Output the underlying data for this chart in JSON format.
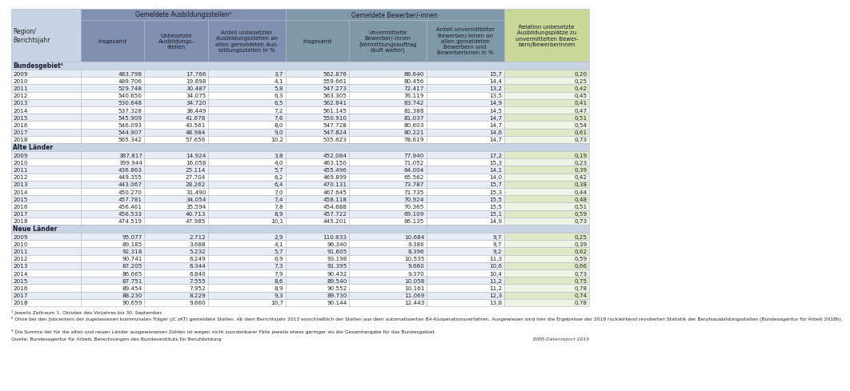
{
  "col_headers_line1_ausb": "Gemeldete Ausbildungsstellen²",
  "col_headers_line1_bew": "Gemeldete Bewerber/-innen",
  "col_headers_line2": [
    "Region/\nBerichtsjahr",
    "Insgesamt",
    "Unbesetzte\nAusbildungs-\nstellen",
    "Anteil unbesetzter\nAusbildungsstellen an\nallen gemeldeten Aus-\nbildungsstellen in %",
    "Insgesamt",
    "Unvermittelte\nBewerber/-innen\n(Vermittlungsauftrag\nläuft weiter)",
    "Anteil unvermittelter\nBewerber/-innen an\nallen gemeldeten\nBewerbern und\nBewerberinnen in %",
    "Relation unbesetzte\nAusbildungsplätze zu\nunvermittelten Bewer-\nbern/Bewerberinnen"
  ],
  "sections": [
    {
      "name": "Bundesgebiet¹",
      "rows": [
        [
          "2009",
          "483.798",
          "17.766",
          "3,7",
          "562.876",
          "88.640",
          "15,7",
          "0,20"
        ],
        [
          "2010",
          "489.706",
          "19.898",
          "4,1",
          "559.661",
          "80.456",
          "14,4",
          "0,25"
        ],
        [
          "2011",
          "529.748",
          "30.487",
          "5,8",
          "547.273",
          "72.417",
          "13,2",
          "0,42"
        ],
        [
          "2012",
          "540.650",
          "34.075",
          "6,3",
          "563.305",
          "76.119",
          "13,5",
          "0,45"
        ],
        [
          "2013",
          "530.648",
          "34.720",
          "6,5",
          "562.841",
          "83.742",
          "14,9",
          "0,41"
        ],
        [
          "2014",
          "537.328",
          "38.449",
          "7,2",
          "561.145",
          "81.388",
          "14,5",
          "0,47"
        ],
        [
          "2015",
          "545.909",
          "41.678",
          "7,6",
          "550.910",
          "81.037",
          "14,7",
          "0,51"
        ],
        [
          "2016",
          "546.093",
          "43.561",
          "8,0",
          "547.728",
          "80.603",
          "14,7",
          "0,54"
        ],
        [
          "2017",
          "544.907",
          "48.984",
          "9,0",
          "547.824",
          "80.221",
          "14,6",
          "0,61"
        ],
        [
          "2018",
          "565.342",
          "57.656",
          "10,2",
          "535.623",
          "78.619",
          "14,7",
          "0,73"
        ]
      ]
    },
    {
      "name": "Alte Länder",
      "rows": [
        [
          "2009",
          "387.817",
          "14.924",
          "3,8",
          "452.084",
          "77.940",
          "17,2",
          "0,19"
        ],
        [
          "2010",
          "399.944",
          "16.058",
          "4,0",
          "463.150",
          "71.052",
          "15,3",
          "0,23"
        ],
        [
          "2011",
          "436.863",
          "25.114",
          "5,7",
          "455.496",
          "64.004",
          "14,1",
          "0,39"
        ],
        [
          "2012",
          "449.355",
          "27.704",
          "6,2",
          "469.899",
          "65.562",
          "14,0",
          "0,42"
        ],
        [
          "2013",
          "443.067",
          "28.262",
          "6,4",
          "470.131",
          "73.787",
          "15,7",
          "0,38"
        ],
        [
          "2014",
          "450.270",
          "31.490",
          "7,0",
          "467.645",
          "71.735",
          "15,3",
          "0,44"
        ],
        [
          "2015",
          "457.781",
          "34.054",
          "7,4",
          "458.118",
          "70.924",
          "15,5",
          "0,48"
        ],
        [
          "2016",
          "456.461",
          "35.594",
          "7,8",
          "454.688",
          "70.365",
          "15,5",
          "0,51"
        ],
        [
          "2017",
          "456.533",
          "40.713",
          "8,9",
          "457.722",
          "69.109",
          "15,1",
          "0,59"
        ],
        [
          "2018",
          "474.519",
          "47.985",
          "10,1",
          "445.201",
          "66.135",
          "14,9",
          "0,73"
        ]
      ]
    },
    {
      "name": "Neue Länder",
      "rows": [
        [
          "2009",
          "95.077",
          "2.712",
          "2,9",
          "110.633",
          "10.684",
          "9,7",
          "0,25"
        ],
        [
          "2010",
          "89.185",
          "3.688",
          "4,1",
          "96.340",
          "9.386",
          "9,7",
          "0,39"
        ],
        [
          "2011",
          "92.318",
          "5.232",
          "5,7",
          "91.605",
          "8.396",
          "9,2",
          "0,62"
        ],
        [
          "2012",
          "90.741",
          "6.249",
          "6,9",
          "93.198",
          "10.535",
          "11,3",
          "0,59"
        ],
        [
          "2013",
          "87.205",
          "6.344",
          "7,3",
          "91.395",
          "9.660",
          "10,6",
          "0,66"
        ],
        [
          "2014",
          "86.665",
          "6.840",
          "7,9",
          "90.432",
          "9.370",
          "10,4",
          "0,73"
        ],
        [
          "2015",
          "87.751",
          "7.555",
          "8,6",
          "89.540",
          "10.058",
          "11,2",
          "0,75"
        ],
        [
          "2016",
          "89.454",
          "7.952",
          "8,9",
          "90.552",
          "10.161",
          "11,2",
          "0,78"
        ],
        [
          "2017",
          "88.230",
          "8.229",
          "9,3",
          "89.730",
          "11.069",
          "12,3",
          "0,74"
        ],
        [
          "2018",
          "90.659",
          "9.660",
          "10,7",
          "90.144",
          "12.443",
          "13,8",
          "0,78"
        ]
      ]
    }
  ],
  "footnote1": "¹ Jeweils Zeitraum 1. Oktober des Vorjahres bis 30. September.",
  "footnote2": "² Ohne bei den Jobcentern der zugelassenen kommunalen Träger (jC zKT) gemeldete Stellen. Ab dem Berichtsjahr 2013 einschließlich der Stellen aus dem automatisierten BA-Kooperationsverfahren. Ausgewiesen sind hier die Ergebnisse der 2018 rückwirkend revidierten Statistik der Berufsausbildungsstellen (Bundesagentur für Arbeit 2018h).",
  "footnote3": "³ Die Summe der für die alten und neuen Länder ausgewiesenen Zahlen ist wegen nicht zuordenbarer Fälle jeweils etwas geringer als die Gesamtangabe für das Bundesgebiet.",
  "source": "Quelle: Bundesagentur für Arbeit, Berechnungen des Bundesinstituts für Berufsbildung",
  "bibb": "BIBB-Datenreport 2019",
  "color_header_region": "#c8d4e4",
  "color_header_ausb": "#8090b0",
  "color_header_bew": "#8099aa",
  "color_header_green": "#c8d898",
  "color_section": "#c8d4e4",
  "color_row_even": "#e8ecf4",
  "color_row_odd": "#ffffff",
  "color_row_even_green": "#e0e8c8",
  "color_row_odd_green": "#f0f4e4",
  "color_border": "#b0b8c8",
  "color_text_header": "#1a1a2a",
  "color_text_dark": "#222222"
}
